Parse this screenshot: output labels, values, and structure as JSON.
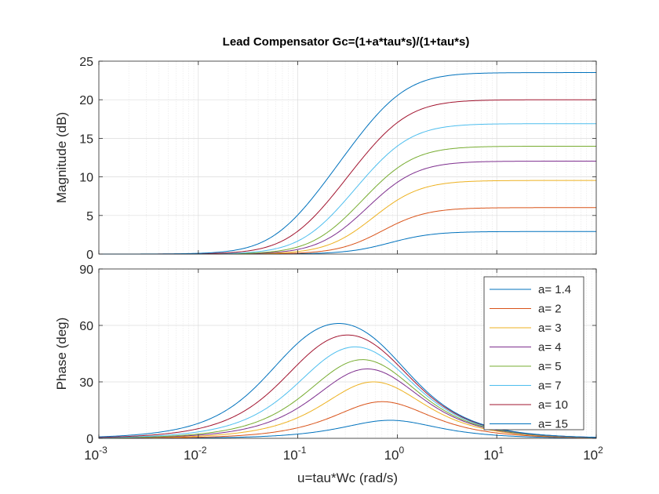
{
  "chart_data": [
    {
      "type": "line",
      "title": "Lead Compensator Gc=(1+a*tau*s)/(1+tau*s)",
      "ylabel": "Magnitude (dB)",
      "xlabel": "",
      "x_scale": "log",
      "xlim": [
        0.001,
        100
      ],
      "ylim": [
        0,
        25
      ],
      "grid": true,
      "xticks": [
        "10-3",
        "10-2",
        "10-1",
        "100",
        "101",
        "102"
      ],
      "yticks": [
        "0",
        "5",
        "10",
        "15",
        "20",
        "25"
      ],
      "series": [
        {
          "a": 1.4,
          "color": "#0072BD",
          "values_final_db": 2.92
        },
        {
          "a": 2,
          "color": "#D95319",
          "values_final_db": 6.02
        },
        {
          "a": 3,
          "color": "#EDB120",
          "values_final_db": 9.54
        },
        {
          "a": 4,
          "color": "#7E2F8E",
          "values_final_db": 12.04
        },
        {
          "a": 5,
          "color": "#77AC30",
          "values_final_db": 13.98
        },
        {
          "a": 7,
          "color": "#4DBEEE",
          "values_final_db": 16.9
        },
        {
          "a": 10,
          "color": "#A2142F",
          "values_final_db": 20.0
        },
        {
          "a": 15,
          "color": "#0072BD",
          "values_final_db": 23.52
        }
      ]
    },
    {
      "type": "line",
      "title": "",
      "ylabel": "Phase (deg)",
      "xlabel": "u=tau*Wc  (rad/s)",
      "x_scale": "log",
      "xlim": [
        0.001,
        100
      ],
      "ylim": [
        0,
        90
      ],
      "grid": true,
      "xticks": [
        "10-3",
        "10-2",
        "10-1",
        "100",
        "101",
        "102"
      ],
      "yticks": [
        "0",
        "30",
        "60",
        "90"
      ],
      "legend_placement": "top-right",
      "legend": [
        "a= 1.4",
        "a= 2",
        "a= 3",
        "a= 4",
        "a= 5",
        "a= 7",
        "a= 10",
        "a= 15"
      ],
      "series_peak_deg": [
        9.6,
        19.5,
        30.0,
        36.9,
        41.8,
        48.6,
        54.9,
        61.0
      ]
    }
  ],
  "labels": {
    "title": "Lead Compensator Gc=(1+a*tau*s)/(1+tau*s)",
    "mag_ylabel": "Magnitude (dB)",
    "phase_ylabel": "Phase (deg)",
    "xlabel": "u=tau*Wc  (rad/s)"
  },
  "a_values": [
    1.4,
    2,
    3,
    4,
    5,
    7,
    10,
    15
  ],
  "legend": [
    "a= 1.4",
    "a= 2",
    "a= 3",
    "a= 4",
    "a= 5",
    "a= 7",
    "a= 10",
    "a= 15"
  ],
  "colors": [
    "#0072BD",
    "#D95319",
    "#EDB120",
    "#7E2F8E",
    "#77AC30",
    "#4DBEEE",
    "#A2142F",
    "#0072BD"
  ],
  "mag_yticks": [
    "0",
    "5",
    "10",
    "15",
    "20",
    "25"
  ],
  "phase_yticks": [
    "0",
    "30",
    "60",
    "90"
  ],
  "xtick_exponents": [
    "-3",
    "-2",
    "-1",
    "0",
    "1",
    "2"
  ],
  "xtick_base": "10"
}
